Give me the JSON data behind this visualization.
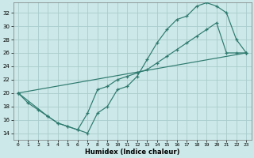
{
  "xlabel": "Humidex (Indice chaleur)",
  "bg_color": "#cce8e8",
  "grid_color": "#aacccc",
  "line_color": "#2d7a6e",
  "xlim": [
    -0.5,
    23.5
  ],
  "ylim": [
    13.0,
    33.5
  ],
  "xticks": [
    0,
    1,
    2,
    3,
    4,
    5,
    6,
    7,
    8,
    9,
    10,
    11,
    12,
    13,
    14,
    15,
    16,
    17,
    18,
    19,
    20,
    21,
    22,
    23
  ],
  "yticks": [
    14,
    16,
    18,
    20,
    22,
    24,
    26,
    28,
    30,
    32
  ],
  "line1_x": [
    0,
    1,
    2,
    3,
    4,
    5,
    6,
    7,
    8,
    9,
    10,
    11,
    12,
    13,
    14,
    15,
    16,
    17,
    18,
    19,
    20,
    21,
    22,
    23
  ],
  "line1_y": [
    20.0,
    18.5,
    17.5,
    16.5,
    15.5,
    15.0,
    14.5,
    14.0,
    17.0,
    18.0,
    20.5,
    21.0,
    22.5,
    25.0,
    27.5,
    29.5,
    31.0,
    31.5,
    33.0,
    33.5,
    33.0,
    32.0,
    28.0,
    26.0
  ],
  "line2_x": [
    0,
    3,
    4,
    5,
    6,
    7,
    8,
    9,
    10,
    11,
    12,
    13,
    14,
    15,
    16,
    17,
    18,
    19,
    20,
    21,
    22,
    23
  ],
  "line2_y": [
    20.0,
    16.5,
    15.5,
    15.0,
    14.5,
    17.0,
    20.5,
    21.0,
    22.0,
    22.5,
    23.0,
    23.5,
    24.5,
    25.5,
    26.5,
    27.5,
    28.5,
    29.5,
    30.5,
    26.0,
    26.0,
    26.0
  ],
  "line3_x": [
    0,
    23
  ],
  "line3_y": [
    20.0,
    26.0
  ]
}
